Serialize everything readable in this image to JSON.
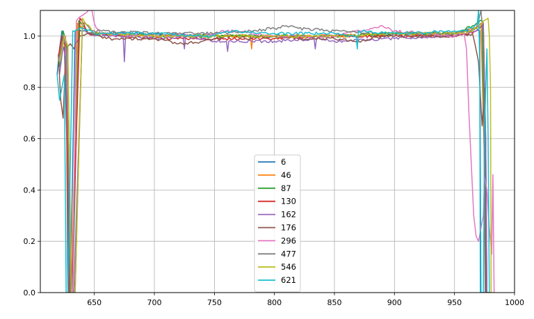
{
  "chart_data": {
    "type": "line",
    "title": "",
    "xlabel": "",
    "ylabel": "",
    "xlim": [
      605,
      1000
    ],
    "ylim": [
      0,
      1.1
    ],
    "xticks": [
      650,
      700,
      750,
      800,
      850,
      900,
      950,
      1000
    ],
    "yticks": [
      0.0,
      0.2,
      0.4,
      0.6,
      0.8,
      1.0
    ],
    "xtick_labels": [
      "650",
      "700",
      "750",
      "800",
      "850",
      "900",
      "950",
      "1000"
    ],
    "ytick_labels": [
      "0.0",
      "0.2",
      "0.4",
      "0.6",
      "0.8",
      "1.0"
    ],
    "grid": true,
    "legend_position": "lower center",
    "series": [
      {
        "name": "6",
        "color": "#1f77b4",
        "x": [
          619,
          621,
          623,
          625,
          627,
          628,
          630,
          634,
          640,
          650,
          700,
          750,
          800,
          850,
          900,
          950,
          962,
          968,
          971,
          972,
          972.5,
          973,
          980
        ],
        "y": [
          0.85,
          0.95,
          1.02,
          0.98,
          0.6,
          0.0,
          0.0,
          1.02,
          1.02,
          1.01,
          1.01,
          1.0,
          1.0,
          1.0,
          1.01,
          1.01,
          1.02,
          1.03,
          1.02,
          0.0,
          0.0,
          0.0,
          0.0
        ]
      },
      {
        "name": "46",
        "color": "#ff7f0e",
        "x": [
          620,
          623,
          626,
          628,
          629,
          631,
          636,
          645,
          700,
          750,
          780,
          781,
          782,
          800,
          850,
          900,
          950,
          965,
          972,
          975,
          976,
          980
        ],
        "y": [
          0.9,
          1.0,
          0.95,
          0.3,
          0.0,
          0.0,
          1.05,
          1.01,
          1.0,
          1.0,
          1.0,
          0.95,
          1.0,
          1.0,
          1.0,
          1.01,
          1.01,
          1.03,
          1.05,
          0.5,
          0.0,
          0.0
        ]
      },
      {
        "name": "87",
        "color": "#2ca02c",
        "x": [
          621,
          624,
          627,
          629,
          630,
          632,
          637,
          645,
          700,
          750,
          800,
          850,
          900,
          950,
          965,
          973,
          975,
          976.5,
          980
        ],
        "y": [
          0.88,
          1.02,
          0.97,
          0.2,
          0.0,
          0.0,
          1.06,
          1.01,
          1.0,
          1.0,
          1.0,
          1.0,
          1.01,
          1.01,
          1.04,
          1.06,
          0.5,
          0.0,
          0.0
        ]
      },
      {
        "name": "130",
        "color": "#d62728",
        "x": [
          620,
          623,
          626,
          628,
          629,
          631,
          638,
          645,
          700,
          750,
          800,
          850,
          900,
          950,
          968,
          974,
          976,
          977,
          980
        ],
        "y": [
          0.92,
          1.0,
          0.96,
          0.4,
          0.0,
          0.0,
          1.07,
          1.01,
          0.99,
          0.99,
          0.99,
          1.0,
          1.0,
          1.0,
          1.02,
          1.05,
          0.6,
          0.0,
          0.0
        ]
      },
      {
        "name": "162",
        "color": "#9467bd",
        "x": [
          621,
          624,
          627,
          629,
          630,
          633,
          640,
          650,
          674,
          675,
          676,
          700,
          724,
          725,
          726,
          750,
          760,
          761,
          762,
          800,
          833,
          834,
          835,
          850,
          900,
          950,
          968,
          974,
          976,
          977,
          980
        ],
        "y": [
          0.85,
          0.96,
          0.9,
          0.3,
          0.0,
          0.0,
          1.03,
          1.0,
          1.0,
          0.9,
          1.0,
          0.99,
          1.0,
          0.95,
          1.0,
          0.98,
          0.98,
          0.94,
          0.98,
          0.98,
          0.99,
          0.95,
          0.99,
          0.98,
          0.99,
          1.0,
          1.02,
          1.05,
          0.6,
          0.0,
          0.0
        ]
      },
      {
        "name": "176",
        "color": "#8c564b",
        "x": [
          620,
          622,
          624,
          626,
          628,
          630,
          633,
          638,
          645,
          660,
          700,
          720,
          740,
          760,
          780,
          800,
          820,
          850,
          870,
          890,
          900,
          950,
          965,
          970,
          973,
          975,
          976,
          980
        ],
        "y": [
          0.93,
          0.75,
          0.68,
          0.92,
          0.96,
          0.97,
          0.95,
          1.0,
          1.01,
          0.99,
          0.99,
          0.97,
          0.98,
          1.0,
          0.99,
          1.0,
          0.99,
          0.99,
          0.98,
          1.0,
          1.0,
          1.0,
          1.01,
          0.9,
          0.65,
          0.8,
          0.0,
          0.0
        ]
      },
      {
        "name": "296",
        "color": "#e377c2",
        "x": [
          622,
          626,
          629,
          631,
          632,
          635,
          640,
          645,
          648,
          650,
          655,
          700,
          740,
          760,
          800,
          850,
          880,
          890,
          900,
          950,
          958,
          960,
          962,
          964,
          966,
          968,
          970,
          972,
          974,
          975,
          977,
          979,
          981,
          982,
          983
        ],
        "y": [
          0.95,
          1.0,
          0.4,
          0.0,
          0.0,
          1.06,
          1.08,
          1.1,
          1.1,
          1.05,
          1.01,
          1.0,
          1.0,
          1.02,
          1.0,
          1.0,
          1.03,
          1.04,
          1.02,
          1.0,
          1.01,
          0.95,
          0.7,
          0.5,
          0.3,
          0.22,
          0.2,
          0.25,
          0.3,
          0.45,
          0.4,
          0.25,
          0.15,
          0.46,
          0.0
        ]
      },
      {
        "name": "477",
        "color": "#7f7f7f",
        "x": [
          620,
          624,
          627,
          629,
          630,
          634,
          640,
          650,
          700,
          750,
          780,
          800,
          810,
          820,
          850,
          900,
          950,
          968,
          972,
          974,
          975.5,
          980
        ],
        "y": [
          0.9,
          1.0,
          0.95,
          0.3,
          0.0,
          0.0,
          1.05,
          1.02,
          1.01,
          1.01,
          1.02,
          1.03,
          1.04,
          1.03,
          1.02,
          1.01,
          1.01,
          1.03,
          1.1,
          1.0,
          0.0,
          0.0
        ]
      },
      {
        "name": "546",
        "color": "#bcbd22",
        "x": [
          621,
          625,
          628,
          630,
          631,
          634,
          640,
          650,
          700,
          750,
          800,
          850,
          900,
          950,
          965,
          973,
          978,
          979,
          980,
          980.5,
          981,
          983
        ],
        "y": [
          0.9,
          1.0,
          0.96,
          0.3,
          0.0,
          0.0,
          1.07,
          1.01,
          1.0,
          1.0,
          1.0,
          1.0,
          1.01,
          1.01,
          1.02,
          1.05,
          1.07,
          1.0,
          0.8,
          0.0,
          0.0,
          0.0
        ]
      },
      {
        "name": "621",
        "color": "#17becf",
        "x": [
          619,
          621,
          623,
          625,
          626,
          626.5,
          627,
          628,
          632,
          640,
          650,
          700,
          750,
          760,
          800,
          850,
          868,
          869,
          870,
          900,
          950,
          965,
          969,
          970,
          971,
          971.5,
          972,
          974,
          975,
          976,
          977,
          978,
          979,
          980
        ],
        "y": [
          0.85,
          0.75,
          0.8,
          0.85,
          0.3,
          0.0,
          0.0,
          0.0,
          1.02,
          1.03,
          1.01,
          1.01,
          1.0,
          1.02,
          1.01,
          1.01,
          1.0,
          0.95,
          1.02,
          1.01,
          1.02,
          1.03,
          1.05,
          1.1,
          0.9,
          0.0,
          0.0,
          0.0,
          0.6,
          0.8,
          0.95,
          0.6,
          0.0,
          0.0
        ]
      }
    ]
  }
}
